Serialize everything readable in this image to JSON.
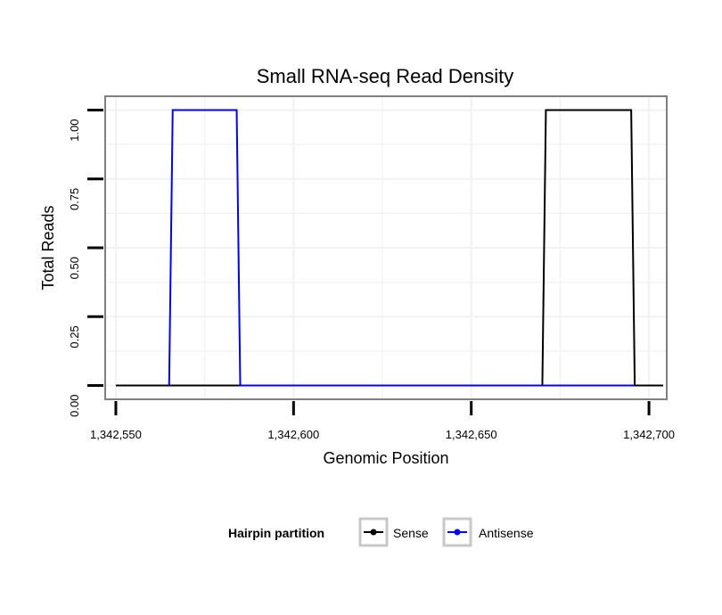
{
  "chart_data": {
    "type": "line",
    "title": "Small RNA-seq Read Density",
    "xlabel": "Genomic Position",
    "ylabel": "Total Reads",
    "xlim": [
      1342547,
      1342705
    ],
    "ylim": [
      -0.05,
      1.05
    ],
    "x_ticks": [
      1342550,
      1342600,
      1342650,
      1342700
    ],
    "x_tick_labels": [
      "1,342,550",
      "1,342,600",
      "1,342,650",
      "1,342,700"
    ],
    "y_ticks": [
      0,
      0.25,
      0.5,
      0.75,
      1.0
    ],
    "y_tick_labels": [
      "0.00",
      "0.25",
      "0.50",
      "0.75",
      "1.00"
    ],
    "grid": true,
    "legend": {
      "title": "Hairpin partition",
      "position": "bottom",
      "entries": [
        "Sense",
        "Antisense"
      ]
    },
    "series": [
      {
        "name": "Sense",
        "color": "#000000",
        "x": [
          1342550,
          1342670,
          1342671,
          1342695,
          1342696,
          1342704
        ],
        "y": [
          0,
          0,
          1,
          1,
          0,
          0
        ]
      },
      {
        "name": "Antisense",
        "color": "#0000ff",
        "x": [
          1342565,
          1342566,
          1342584,
          1342585,
          1342670,
          1342696
        ],
        "y": [
          0,
          1,
          1,
          0,
          0,
          0
        ]
      }
    ]
  }
}
